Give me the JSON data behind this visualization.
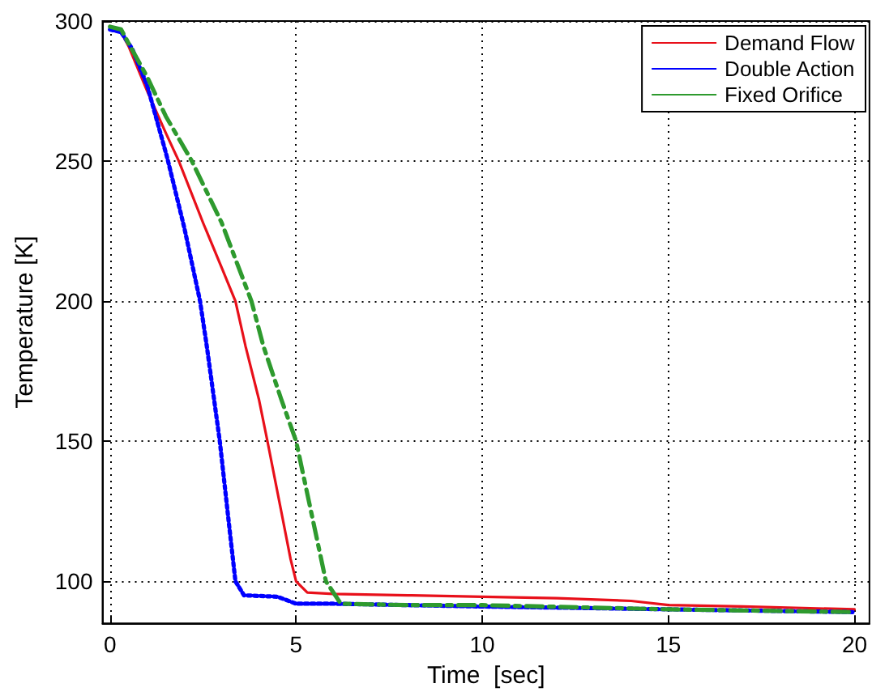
{
  "chart_data": {
    "type": "line",
    "xlabel": "Time  [sec]",
    "ylabel": "Temperature [K]",
    "xlim": [
      -0.2,
      20.4
    ],
    "xticks": [
      0,
      5,
      10,
      15,
      20
    ],
    "ylim": [
      85,
      300
    ],
    "yticks": [
      100,
      150,
      200,
      250,
      300
    ],
    "grid": true,
    "legend": "top right",
    "marker": "none",
    "series": [
      {
        "name": "Demand Flow",
        "color": "#e8101a",
        "line_style": "solid",
        "x": [
          0,
          0.3,
          0.5,
          1,
          1.5,
          1.85,
          2.5,
          3,
          3.37,
          3.64,
          4,
          4.23,
          4.6,
          4.85,
          5,
          5.3,
          6,
          8,
          10,
          12,
          14,
          15,
          17,
          20
        ],
        "values": [
          297,
          296,
          291,
          275,
          260,
          250,
          228,
          212,
          200,
          184,
          165,
          150,
          125,
          108,
          100,
          96,
          95.5,
          95,
          94.5,
          94,
          93,
          91.5,
          91,
          90
        ]
      },
      {
        "name": "Double Action",
        "color": "#0000ff",
        "line_style": "dotted",
        "x": [
          0,
          0.3,
          0.6,
          1,
          1.5,
          1.56,
          2,
          2.42,
          2.6,
          2.95,
          3.2,
          3.37,
          3.6,
          4.5,
          5,
          6,
          10,
          15,
          20
        ],
        "values": [
          297,
          296,
          290,
          277,
          253,
          250,
          226,
          200,
          184,
          150,
          120,
          100,
          95,
          94.5,
          92,
          92,
          91,
          90,
          89
        ]
      },
      {
        "name": "Fixed Orifice",
        "color": "#2e9a2e",
        "line_style": "dashed",
        "x": [
          0,
          0.3,
          0.5,
          1,
          1.5,
          2.2,
          3,
          3.8,
          4.12,
          4.6,
          5,
          5.4,
          5.8,
          6.2,
          8,
          10,
          15,
          20
        ],
        "values": [
          298,
          297,
          292,
          280,
          266,
          250,
          228,
          200,
          184,
          165,
          150,
          125,
          100,
          92,
          91.5,
          91.5,
          90,
          89
        ]
      }
    ]
  }
}
